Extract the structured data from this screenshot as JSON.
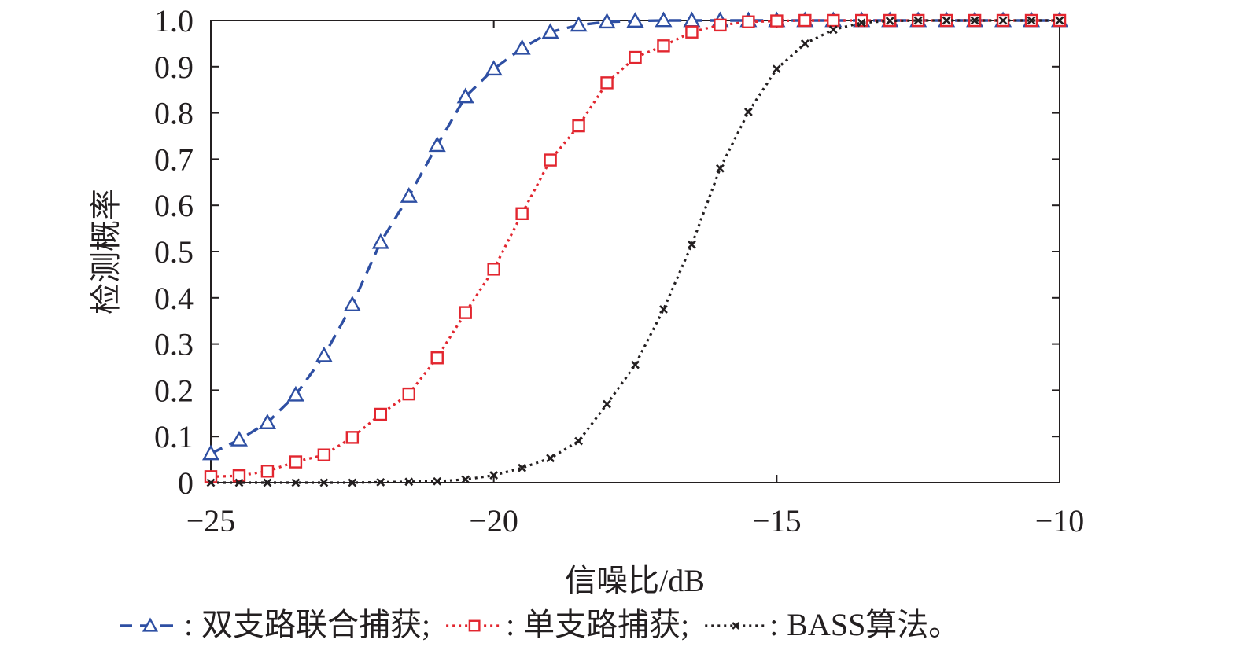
{
  "chart_data": {
    "type": "line",
    "xlabel": "信噪比/dB",
    "ylabel": "检测概率",
    "xlim": [
      -25,
      -10
    ],
    "ylim": [
      0,
      1
    ],
    "x_ticks": [
      -25,
      -20,
      -15,
      -10
    ],
    "x_tick_labels": [
      "−25",
      "−20",
      "−15",
      "−10"
    ],
    "y_ticks": [
      0,
      0.1,
      0.2,
      0.3,
      0.4,
      0.5,
      0.6,
      0.7,
      0.8,
      0.9,
      1.0
    ],
    "y_tick_labels": [
      "0",
      "0.1",
      "0.2",
      "0.3",
      "0.4",
      "0.5",
      "0.6",
      "0.7",
      "0.8",
      "0.9",
      "1.0"
    ],
    "grid": false,
    "legend_position": "bottom",
    "x": [
      -25,
      -24.5,
      -24,
      -23.5,
      -23,
      -22.5,
      -22,
      -21.5,
      -21,
      -20.5,
      -20,
      -19.5,
      -19,
      -18.5,
      -18,
      -17.5,
      -17,
      -16.5,
      -16,
      -15.5,
      -15,
      -14.5,
      -14,
      -13.5,
      -13,
      -12.5,
      -12,
      -11.5,
      -11,
      -10.5,
      -10
    ],
    "series": [
      {
        "name": "双支路联合捕获",
        "color": "#2e4fa3",
        "line_style": "dashed",
        "marker": "triangle",
        "values": [
          0.063,
          0.093,
          0.13,
          0.19,
          0.275,
          0.385,
          0.52,
          0.62,
          0.73,
          0.835,
          0.895,
          0.94,
          0.975,
          0.99,
          0.997,
          0.999,
          1.0,
          1.0,
          1.0,
          1.0,
          1.0,
          1.0,
          1.0,
          1.0,
          1.0,
          1.0,
          1.0,
          1.0,
          1.0,
          1.0,
          1.0
        ]
      },
      {
        "name": "单支路捕获",
        "color": "#e2262f",
        "line_style": "dotted",
        "marker": "square",
        "values": [
          0.013,
          0.015,
          0.025,
          0.045,
          0.06,
          0.098,
          0.148,
          0.192,
          0.27,
          0.368,
          0.462,
          0.582,
          0.698,
          0.772,
          0.865,
          0.92,
          0.945,
          0.975,
          0.99,
          0.997,
          0.999,
          1.0,
          1.0,
          1.0,
          1.0,
          1.0,
          1.0,
          1.0,
          1.0,
          1.0,
          1.0
        ]
      },
      {
        "name": "BASS算法",
        "color": "#231f20",
        "line_style": "dotted",
        "marker": "x",
        "values": [
          0.0,
          0.0,
          0.0,
          0.0,
          0.0,
          0.0,
          0.001,
          0.002,
          0.003,
          0.007,
          0.016,
          0.032,
          0.053,
          0.09,
          0.17,
          0.255,
          0.375,
          0.515,
          0.68,
          0.802,
          0.895,
          0.95,
          0.98,
          0.995,
          0.999,
          1.0,
          1.0,
          1.0,
          1.0,
          1.0,
          1.0
        ]
      }
    ],
    "legend": {
      "separator": ":",
      "entries": [
        {
          "label": "双支路联合捕获;"
        },
        {
          "label": "单支路捕获;"
        },
        {
          "label": "BASS算法。"
        }
      ]
    }
  }
}
